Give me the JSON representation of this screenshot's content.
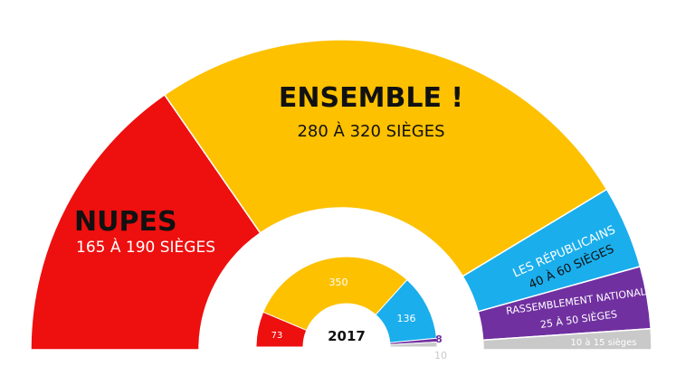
{
  "chart_data": [
    {
      "type": "pie",
      "subtype": "half-donut",
      "title": "",
      "slices": [
        {
          "name": "NUPES",
          "label": "165 À 190 SIÈGES",
          "range": [
            165,
            190
          ],
          "color": "#ee0f0f"
        },
        {
          "name": "ENSEMBLE !",
          "label": "280 À 320 SIÈGES",
          "range": [
            280,
            320
          ],
          "color": "#fdc100"
        },
        {
          "name": "LES RÉPUBLICAINS",
          "label": "40 À 60 SIÈGES",
          "range": [
            40,
            60
          ],
          "color": "#1aaeec"
        },
        {
          "name": "RASSEMBLEMENT NATIONAL",
          "label": "25 À 50 SIÈGES",
          "range": [
            25,
            50
          ],
          "color": "#7030a0"
        },
        {
          "name": "",
          "label": "10 à 15 sièges",
          "range": [
            10,
            15
          ],
          "color": "#c9c9c9"
        }
      ]
    },
    {
      "type": "pie",
      "subtype": "half-donut",
      "title": "2017",
      "slices": [
        {
          "value": 73,
          "label": "73",
          "color": "#ee0f0f"
        },
        {
          "value": 350,
          "label": "350",
          "color": "#fdc100"
        },
        {
          "value": 136,
          "label": "136",
          "color": "#1aaeec"
        },
        {
          "value": 8,
          "label": "8",
          "color": "#7030a0"
        },
        {
          "value": 10,
          "label": "10",
          "color": "#c9c9c9"
        }
      ]
    }
  ]
}
